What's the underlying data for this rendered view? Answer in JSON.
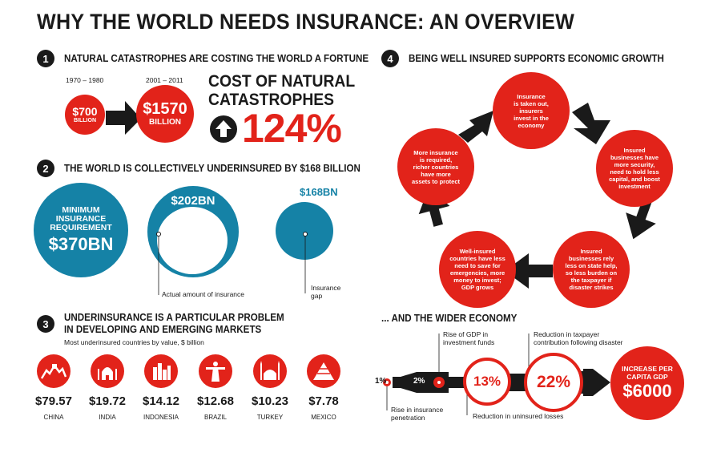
{
  "title": "WHY THE WORLD NEEDS INSURANCE: AN OVERVIEW",
  "s1": {
    "num": "1",
    "title": "NATURAL CATASTROPHES ARE COSTING THE WORLD A FORTUNE",
    "period1": "1970 – 1980",
    "period2": "2001 – 2011",
    "amt1": "$700",
    "amt1_unit": "BILLION",
    "amt2": "$1570",
    "amt2_unit": "BILLION",
    "cost_line1": "COST OF NATURAL",
    "cost_line2": "CATASTROPHES",
    "pct": "124%"
  },
  "s2": {
    "num": "2",
    "title": "THE WORLD IS COLLECTIVELY UNDERINSURED BY $168 BILLION",
    "min_line1": "MINIMUM",
    "min_line2": "INSURANCE",
    "min_line3": "REQUIREMENT",
    "min_amt": "$370BN",
    "actual_amt": "$202BN",
    "actual_label": "Actual amount of insurance",
    "gap_amt": "$168BN",
    "gap_label1": "Insurance",
    "gap_label2": "gap"
  },
  "s3": {
    "num": "3",
    "title1": "UNDERINSURANCE IS A PARTICULAR PROBLEM",
    "title2": "IN DEVELOPING AND EMERGING MARKETS",
    "subtitle": "Most underinsured countries by value, $ billion",
    "countries": [
      {
        "name": "CHINA",
        "amount": "$79.57",
        "icon": "great-wall-icon"
      },
      {
        "name": "INDIA",
        "amount": "$19.72",
        "icon": "taj-mahal-icon"
      },
      {
        "name": "INDONESIA",
        "amount": "$14.12",
        "icon": "skyline-icon"
      },
      {
        "name": "BRAZIL",
        "amount": "$12.68",
        "icon": "christ-redeemer-icon"
      },
      {
        "name": "TURKEY",
        "amount": "$10.23",
        "icon": "mosque-icon"
      },
      {
        "name": "MEXICO",
        "amount": "$7.78",
        "icon": "pyramid-icon"
      }
    ]
  },
  "s4": {
    "num": "4",
    "title": "BEING WELL INSURED SUPPORTS ECONOMIC GROWTH",
    "cycle": [
      [
        "Insurance",
        "is taken out,",
        "insurers",
        "invest in the",
        "economy"
      ],
      [
        "Insured",
        "businesses have",
        "more security,",
        "need to hold less",
        "capital, and boost",
        "investment"
      ],
      [
        "Insured",
        "businesses rely",
        "less on state help,",
        "so less burden on",
        "the taxpayer if",
        "disaster strikes"
      ],
      [
        "Well-insured",
        "countries have less",
        "need to save for",
        "emergencies, more",
        "money to invest;",
        "GDP grows"
      ],
      [
        "More insurance",
        "is required,",
        "richer countries",
        "have more",
        "assets to protect"
      ]
    ]
  },
  "s5": {
    "title": "... AND THE WIDER ECONOMY",
    "p1": "1%",
    "p2": "2%",
    "p3": "13%",
    "p4": "22%",
    "gdp_label1": "Rise of GDP in",
    "gdp_label2": "investment funds",
    "penetration1": "Rise in insurance",
    "penetration2": "penetration",
    "losses": "Reduction in uninsured losses",
    "taxpayer1": "Reduction in taxpayer",
    "taxpayer2": "contribution following disaster",
    "inc1": "INCREASE PER",
    "inc2": "CAPITA GDP",
    "inc_amt": "$6000"
  },
  "colors": {
    "red": "#e2231a",
    "blue": "#1582a6",
    "dark": "#1a1a1a"
  }
}
